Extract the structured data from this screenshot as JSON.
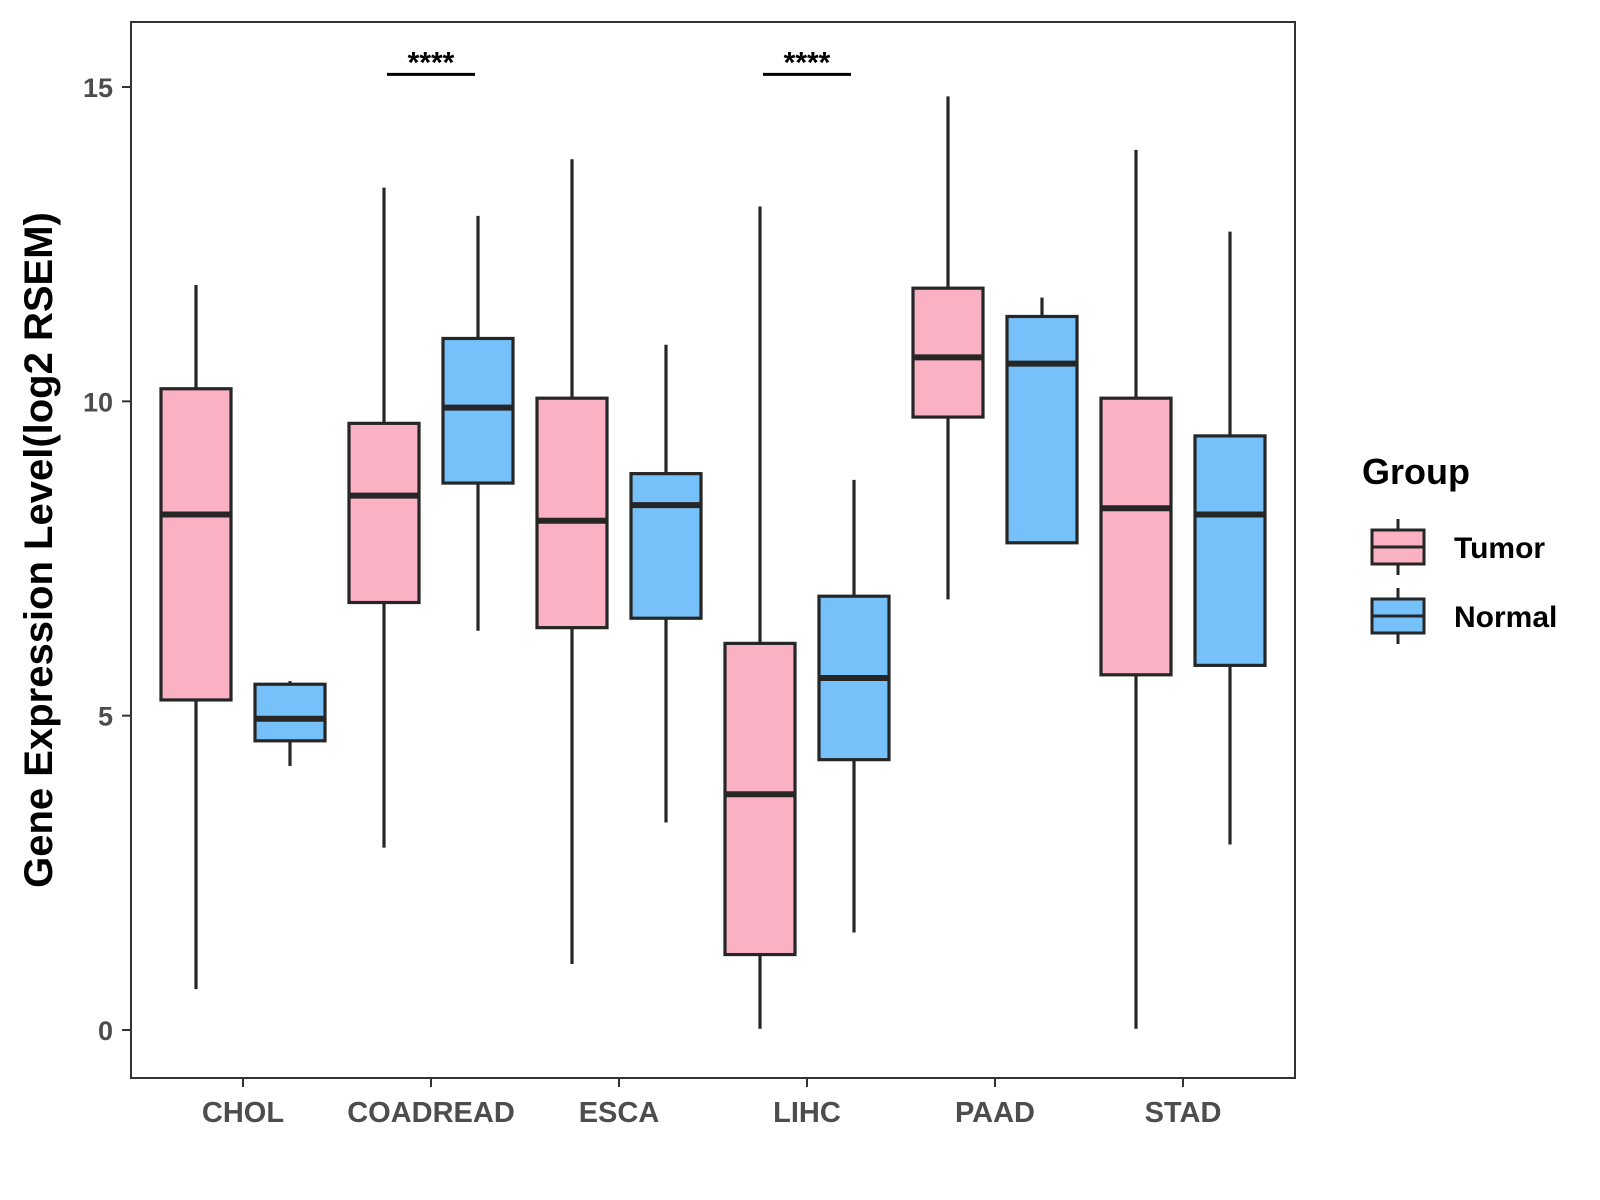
{
  "chart_data": {
    "type": "box",
    "title": "",
    "xlabel": "",
    "ylabel": "Gene Expression Level(log2 RSEM)",
    "ylim": [
      -0.75,
      16.0
    ],
    "yticks": [
      0,
      5,
      10,
      15
    ],
    "ytick_labels": [
      "0",
      "5",
      "10",
      "15"
    ],
    "categories": [
      "CHOL",
      "COADREAD",
      "ESCA",
      "LIHC",
      "PAAD",
      "STAD"
    ],
    "legend": {
      "title": "Group",
      "position": "right",
      "entries": [
        "Tumor",
        "Normal"
      ]
    },
    "series": [
      {
        "name": "Tumor",
        "color": "#fbb1c4",
        "boxes": [
          {
            "whisker_low": 0.65,
            "q1": 5.25,
            "median": 8.2,
            "q3": 10.2,
            "whisker_high": 11.85
          },
          {
            "whisker_low": 2.9,
            "q1": 6.8,
            "median": 8.5,
            "q3": 9.65,
            "whisker_high": 13.4
          },
          {
            "whisker_low": 1.05,
            "q1": 6.4,
            "median": 8.1,
            "q3": 10.05,
            "whisker_high": 13.85
          },
          {
            "whisker_low": 0.02,
            "q1": 1.2,
            "median": 3.75,
            "q3": 6.15,
            "whisker_high": 13.1
          },
          {
            "whisker_low": 6.85,
            "q1": 9.75,
            "median": 10.7,
            "q3": 11.8,
            "whisker_high": 14.85
          },
          {
            "whisker_low": 0.02,
            "q1": 5.65,
            "median": 8.3,
            "q3": 10.05,
            "whisker_high": 14.0
          }
        ]
      },
      {
        "name": "Normal",
        "color": "#76c1f9",
        "boxes": [
          {
            "whisker_low": 4.2,
            "q1": 4.6,
            "median": 4.95,
            "q3": 5.5,
            "whisker_high": 5.55
          },
          {
            "whisker_low": 6.35,
            "q1": 8.7,
            "median": 9.9,
            "q3": 11.0,
            "whisker_high": 12.95
          },
          {
            "whisker_low": 3.3,
            "q1": 6.55,
            "median": 8.35,
            "q3": 8.85,
            "whisker_high": 10.9
          },
          {
            "whisker_low": 1.55,
            "q1": 4.3,
            "median": 5.6,
            "q3": 6.9,
            "whisker_high": 8.75
          },
          {
            "whisker_low": 7.75,
            "q1": 7.75,
            "median": 10.6,
            "q3": 11.35,
            "whisker_high": 11.65
          },
          {
            "whisker_low": 2.95,
            "q1": 5.8,
            "median": 8.2,
            "q3": 9.45,
            "whisker_high": 12.7
          }
        ]
      }
    ],
    "annotations": [
      {
        "category": "COADREAD",
        "text": "****",
        "y": 15.2
      },
      {
        "category": "LIHC",
        "text": "****",
        "y": 15.2
      }
    ]
  }
}
